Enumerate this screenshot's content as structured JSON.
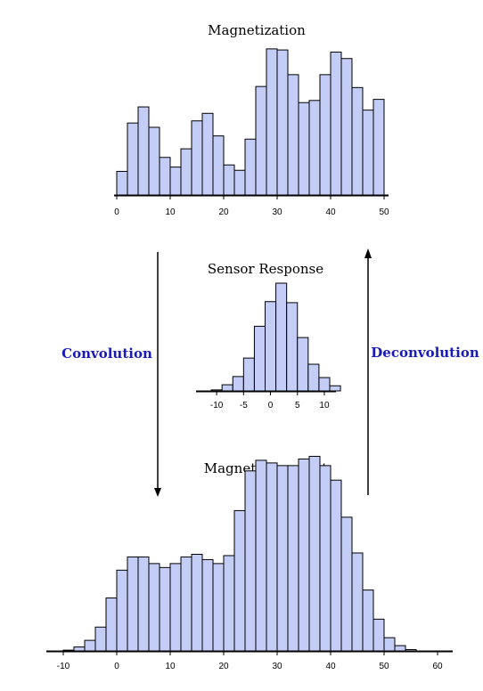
{
  "chart_data": [
    {
      "id": "magnetization",
      "type": "bar",
      "title": "Magnetization",
      "xlim": [
        0,
        50
      ],
      "bin_width": 2,
      "x_start": 0,
      "xticks": [
        0,
        10,
        20,
        30,
        40,
        50
      ],
      "values": [
        2.2,
        6.7,
        8.2,
        6.3,
        3.5,
        2.6,
        4.3,
        6.9,
        7.6,
        5.5,
        2.8,
        2.3,
        5.2,
        10.1,
        13.6,
        13.5,
        11.2,
        8.6,
        8.8,
        11.2,
        13.3,
        12.7,
        10.0,
        7.9,
        8.9
      ],
      "ylim": [
        0,
        15
      ]
    },
    {
      "id": "sensor-response",
      "type": "bar",
      "title": "Sensor Response",
      "xlim": [
        -13,
        11
      ],
      "bin_width": 2,
      "x_start": -11,
      "xticks": [
        -10,
        -5,
        0,
        5,
        10
      ],
      "values": [
        0.1,
        0.6,
        1.4,
        3.2,
        6.3,
        8.7,
        10.5,
        8.6,
        5.2,
        2.6,
        1.3,
        0.5
      ],
      "ylim": [
        0,
        10.5
      ]
    },
    {
      "id": "magnetic-moment",
      "type": "bar",
      "title": "Magnetic moment",
      "xlim": [
        -12,
        62
      ],
      "bin_width": 2,
      "x_start": -12,
      "xticks": [
        -10,
        0,
        10,
        20,
        30,
        40,
        50,
        60
      ],
      "values": [
        0,
        0.06,
        0.3,
        0.8,
        1.8,
        4.0,
        6.1,
        7.1,
        7.1,
        6.6,
        6.3,
        6.6,
        7.1,
        7.3,
        6.9,
        6.6,
        7.2,
        10.6,
        13.6,
        14.4,
        14.2,
        14.0,
        14.0,
        14.5,
        14.7,
        14.0,
        12.9,
        10.1,
        7.4,
        4.6,
        2.4,
        1.0,
        0.4,
        0.1,
        0
      ],
      "ylim": [
        0,
        15
      ]
    }
  ],
  "labels": {
    "convolution": "Convolution",
    "deconvolution": "Deconvolution"
  },
  "colors": {
    "bar_fill": "#c3cdf5",
    "label_text": "#1a1ab4"
  }
}
